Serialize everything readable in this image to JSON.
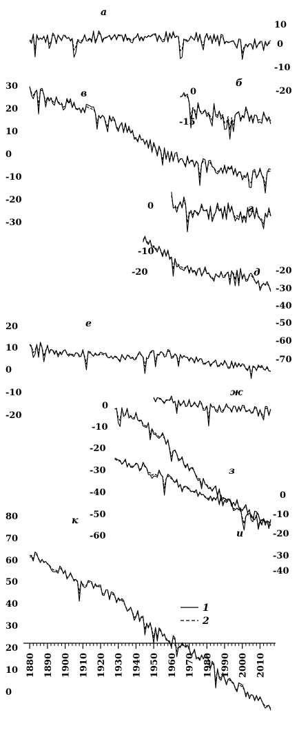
{
  "chart_data": {
    "type": "line",
    "title": "",
    "xlabel": "",
    "ylabel": "",
    "x_ticks": [
      1880,
      1890,
      1900,
      1910,
      1920,
      1930,
      1940,
      1950,
      1960,
      1970,
      1980,
      1990,
      2000,
      2010
    ],
    "xlim": [
      1878,
      2018
    ],
    "legend": {
      "placement": "bottom-right",
      "entries": [
        {
          "label": "1",
          "style": "solid"
        },
        {
          "label": "2",
          "style": "dashed"
        }
      ]
    },
    "panels": [
      {
        "letter": "а",
        "x_start": 1880,
        "x_end": 2016,
        "level": [
          3,
          3,
          3,
          4,
          4,
          4,
          4,
          3,
          3,
          1,
          -1,
          -2
        ],
        "noise": 4,
        "seed": 11,
        "ticks": [
          {
            "value": "10",
            "side": "right"
          },
          {
            "value": "0",
            "side": "right"
          },
          {
            "value": "-10",
            "side": "right"
          },
          {
            "value": "-20",
            "side": "right"
          }
        ]
      },
      {
        "letter": "б",
        "x_start": 1965,
        "x_end": 2016,
        "level": [
          4,
          -3,
          -4,
          -5,
          -6,
          -6
        ],
        "noise": 4,
        "seed": 23,
        "ticks": [
          {
            "value": "0",
            "side": "left"
          },
          {
            "value": "-15",
            "side": "left"
          }
        ]
      },
      {
        "letter": "в",
        "x_start": 1880,
        "x_end": 2016,
        "level": [
          26,
          22,
          18,
          15,
          10,
          4,
          -2,
          -6,
          -8,
          -10,
          -12,
          -12
        ],
        "noise": 3,
        "seed": 37,
        "ticks": [
          {
            "value": "30",
            "side": "left"
          },
          {
            "value": "20",
            "side": "left"
          },
          {
            "value": "10",
            "side": "left"
          },
          {
            "value": "0",
            "side": "left"
          },
          {
            "value": "-10",
            "side": "left"
          },
          {
            "value": "-20",
            "side": "left"
          },
          {
            "value": "-30",
            "side": "left"
          }
        ]
      },
      {
        "letter": "г",
        "x_start": 1960,
        "x_end": 2016,
        "level": [
          2,
          -2,
          -4,
          -3,
          -5,
          -6
        ],
        "noise": 5,
        "seed": 41,
        "ticks": [
          {
            "value": "0",
            "side": "left"
          }
        ]
      },
      {
        "letter": "д",
        "x_start": 1944,
        "x_end": 2016,
        "level": [
          -14,
          -22,
          -30,
          -35,
          -38,
          -34,
          -40,
          -45
        ],
        "noise": 4,
        "seed": 53,
        "ticks": [
          {
            "value": "-10",
            "side": "left"
          },
          {
            "value": "-20",
            "side": "left"
          },
          {
            "value": "-20",
            "side": "right"
          },
          {
            "value": "-30",
            "side": "right"
          },
          {
            "value": "-40",
            "side": "right"
          },
          {
            "value": "-50",
            "side": "right"
          },
          {
            "value": "-60",
            "side": "right"
          },
          {
            "value": "-70",
            "side": "right"
          }
        ]
      },
      {
        "letter": "е",
        "x_start": 1880,
        "x_end": 2016,
        "level": [
          16,
          12,
          10,
          8,
          6,
          8,
          10,
          8,
          4,
          2,
          0,
          -2
        ],
        "noise": 3,
        "seed": 67,
        "ticks": [
          {
            "value": "20",
            "side": "left"
          },
          {
            "value": "10",
            "side": "left"
          },
          {
            "value": "0",
            "side": "left"
          },
          {
            "value": "-10",
            "side": "left"
          },
          {
            "value": "-20",
            "side": "left"
          }
        ]
      },
      {
        "letter": "ж",
        "x_start": 1950,
        "x_end": 2016,
        "level": [
          3,
          2,
          0,
          -1,
          -2,
          -3,
          -4
        ],
        "noise": 3,
        "seed": 71,
        "ticks": [
          {
            "value": "0",
            "side": "left"
          }
        ]
      },
      {
        "letter": "з",
        "x_start": 1928,
        "x_end": 2016,
        "level": [
          -2,
          -6,
          -14,
          -26,
          -36,
          -44,
          -50,
          -56
        ],
        "noise": 2.5,
        "seed": 79,
        "ticks": [
          {
            "value": "-10",
            "side": "left"
          },
          {
            "value": "-20",
            "side": "left"
          },
          {
            "value": "-30",
            "side": "left"
          },
          {
            "value": "-40",
            "side": "left"
          },
          {
            "value": "-50",
            "side": "left"
          },
          {
            "value": "-60",
            "side": "left"
          }
        ]
      },
      {
        "letter": "и",
        "x_start": 1928,
        "x_end": 2016,
        "level": [
          3,
          1,
          -2,
          -8,
          -14,
          -16,
          -20,
          -28,
          -30
        ],
        "noise": 3,
        "seed": 83,
        "ticks": [
          {
            "value": "0",
            "side": "right"
          },
          {
            "value": "-10",
            "side": "right"
          },
          {
            "value": "-20",
            "side": "right"
          },
          {
            "value": "-30",
            "side": "right"
          },
          {
            "value": "-40",
            "side": "right"
          }
        ]
      },
      {
        "letter": "к",
        "x_start": 1880,
        "x_end": 2016,
        "level": [
          74,
          68,
          62,
          58,
          52,
          44,
          36,
          30,
          24,
          14,
          8,
          2
        ],
        "noise": 2.5,
        "seed": 97,
        "ticks": [
          {
            "value": "80",
            "side": "left"
          },
          {
            "value": "70",
            "side": "left"
          },
          {
            "value": "60",
            "side": "left"
          },
          {
            "value": "50",
            "side": "left"
          },
          {
            "value": "40",
            "side": "left"
          },
          {
            "value": "30",
            "side": "left"
          },
          {
            "value": "20",
            "side": "left"
          },
          {
            "value": "10",
            "side": "left"
          },
          {
            "value": "0",
            "side": "left"
          }
        ]
      }
    ]
  }
}
